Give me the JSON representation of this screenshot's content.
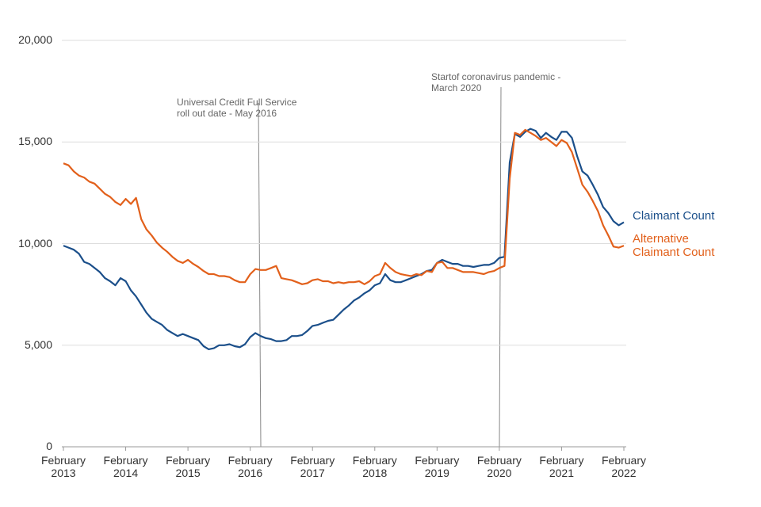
{
  "chart_data": {
    "type": "line",
    "categories": [
      "February 2013",
      null,
      null,
      null,
      null,
      null,
      null,
      null,
      null,
      null,
      null,
      null,
      "February 2014",
      null,
      null,
      null,
      null,
      null,
      null,
      null,
      null,
      null,
      null,
      null,
      "February 2015",
      null,
      null,
      null,
      null,
      null,
      null,
      null,
      null,
      null,
      null,
      null,
      "February 2016",
      null,
      null,
      null,
      null,
      null,
      null,
      null,
      null,
      null,
      null,
      null,
      "February 2017",
      null,
      null,
      null,
      null,
      null,
      null,
      null,
      null,
      null,
      null,
      null,
      "February 2018",
      null,
      null,
      null,
      null,
      null,
      null,
      null,
      null,
      null,
      null,
      null,
      "February 2019",
      null,
      null,
      null,
      null,
      null,
      null,
      null,
      null,
      null,
      null,
      null,
      "February 2020",
      null,
      null,
      null,
      null,
      null,
      null,
      null,
      null,
      null,
      null,
      null,
      "February 2021",
      null,
      null,
      null,
      null,
      null,
      null,
      null,
      null,
      null,
      null,
      null,
      "February 2022"
    ],
    "series": [
      {
        "name": "Claimant Count",
        "color": "#1b4f8a",
        "values": [
          9900,
          9800,
          9700,
          9500,
          9100,
          9000,
          8800,
          8600,
          8300,
          8150,
          7950,
          8300,
          8150,
          7700,
          7400,
          7000,
          6600,
          6300,
          6150,
          6000,
          5750,
          5600,
          5450,
          5550,
          5450,
          5350,
          5250,
          4950,
          4800,
          4850,
          5000,
          5000,
          5050,
          4950,
          4900,
          5050,
          5400,
          5600,
          5450,
          5350,
          5300,
          5200,
          5200,
          5250,
          5450,
          5450,
          5500,
          5700,
          5950,
          6000,
          6100,
          6200,
          6250,
          6500,
          6750,
          6950,
          7200,
          7350,
          7550,
          7700,
          7950,
          8050,
          8500,
          8200,
          8100,
          8100,
          8200,
          8300,
          8400,
          8500,
          8650,
          8700,
          9050,
          9200,
          9100,
          9000,
          9000,
          8900,
          8900,
          8850,
          8900,
          8950,
          8950,
          9050,
          9300,
          9350,
          14000,
          15400,
          15250,
          15500,
          15650,
          15550,
          15200,
          15450,
          15250,
          15100,
          15500,
          15500,
          15200,
          14300,
          13550,
          13350,
          12900,
          12400,
          11800,
          11500,
          11100,
          10900,
          11050
        ]
      },
      {
        "name": "Alternative Claimant Count",
        "color": "#e2601b",
        "values": [
          13950,
          13850,
          13550,
          13350,
          13250,
          13050,
          12950,
          12700,
          12450,
          12300,
          12050,
          11900,
          12200,
          11950,
          12250,
          11200,
          10700,
          10400,
          10050,
          9800,
          9600,
          9350,
          9150,
          9050,
          9200,
          9000,
          8850,
          8650,
          8500,
          8500,
          8400,
          8400,
          8350,
          8200,
          8100,
          8100,
          8500,
          8750,
          8700,
          8700,
          8800,
          8900,
          8300,
          8250,
          8200,
          8100,
          8000,
          8050,
          8200,
          8250,
          8150,
          8150,
          8050,
          8100,
          8050,
          8100,
          8100,
          8150,
          8000,
          8150,
          8400,
          8500,
          9050,
          8800,
          8600,
          8500,
          8450,
          8400,
          8500,
          8450,
          8650,
          8600,
          9050,
          9100,
          8800,
          8800,
          8700,
          8600,
          8600,
          8600,
          8550,
          8500,
          8600,
          8650,
          8800,
          8900,
          13200,
          15450,
          15350,
          15600,
          15450,
          15300,
          15100,
          15200,
          15000,
          14800,
          15100,
          14950,
          14500,
          13700,
          12900,
          12550,
          12100,
          11600,
          10900,
          10400,
          9850,
          9800,
          9900
        ]
      }
    ],
    "ylim": [
      0,
      20000
    ],
    "yticks": [
      0,
      {
        "value": 5000,
        "label": "5,000"
      },
      {
        "value": 10000,
        "label": "10,000"
      },
      {
        "value": 15000,
        "label": "15,000"
      },
      {
        "value": 20000,
        "label": "20,000"
      }
    ],
    "grid": true,
    "annotations": [
      {
        "lines": [
          "Universal  Credit Full Service",
          "roll out date - May 2016"
        ]
      },
      {
        "lines": [
          "Startof coronavirus  pandemic -",
          "March 2020"
        ]
      }
    ]
  }
}
